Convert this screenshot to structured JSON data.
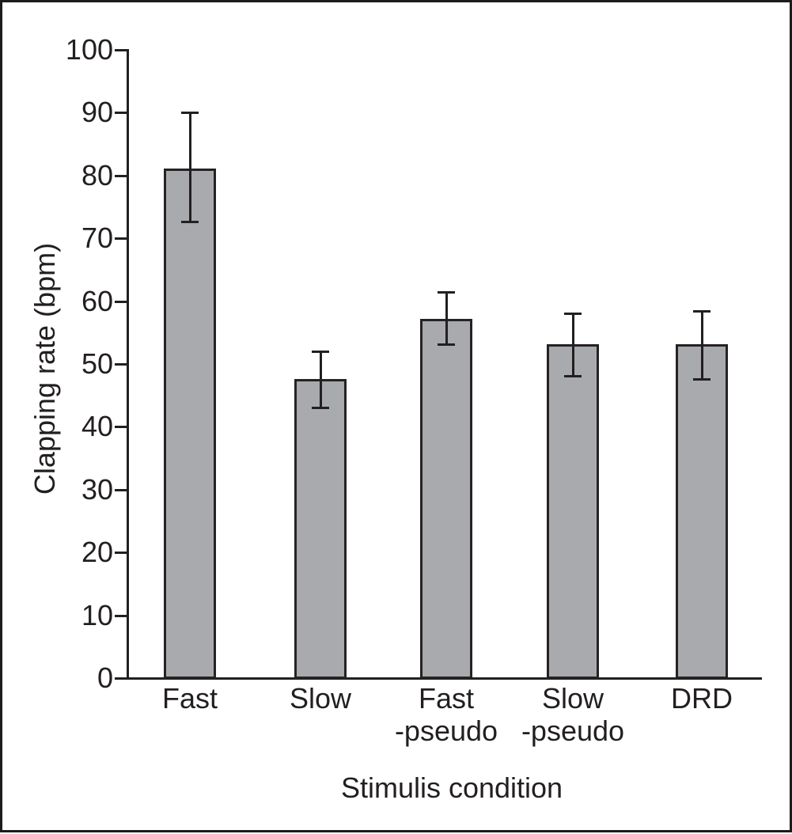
{
  "figure": {
    "background_color": "#ffffff",
    "border_color": "#1c1c1c"
  },
  "chart_data": {
    "type": "bar",
    "title": "",
    "xlabel": "Stimulis condition",
    "ylabel": "Clapping rate (bpm)",
    "categories": [
      "Fast",
      "Slow",
      "Fast\n-pseudo",
      "Slow\n-pseudo",
      "DRD"
    ],
    "values": [
      81,
      47.5,
      57,
      53,
      53
    ],
    "error_upper": [
      90,
      52,
      61.5,
      58,
      58.5
    ],
    "error_lower": [
      72.5,
      43,
      53,
      48,
      47.5
    ],
    "ylim": [
      0,
      100
    ],
    "yticks": [
      0,
      10,
      20,
      30,
      40,
      50,
      60,
      70,
      80,
      90,
      100
    ],
    "grid": false,
    "legend": null,
    "bar_color": "#a8aaad",
    "edge_color": "#262223",
    "axis_color": "#231f20"
  }
}
